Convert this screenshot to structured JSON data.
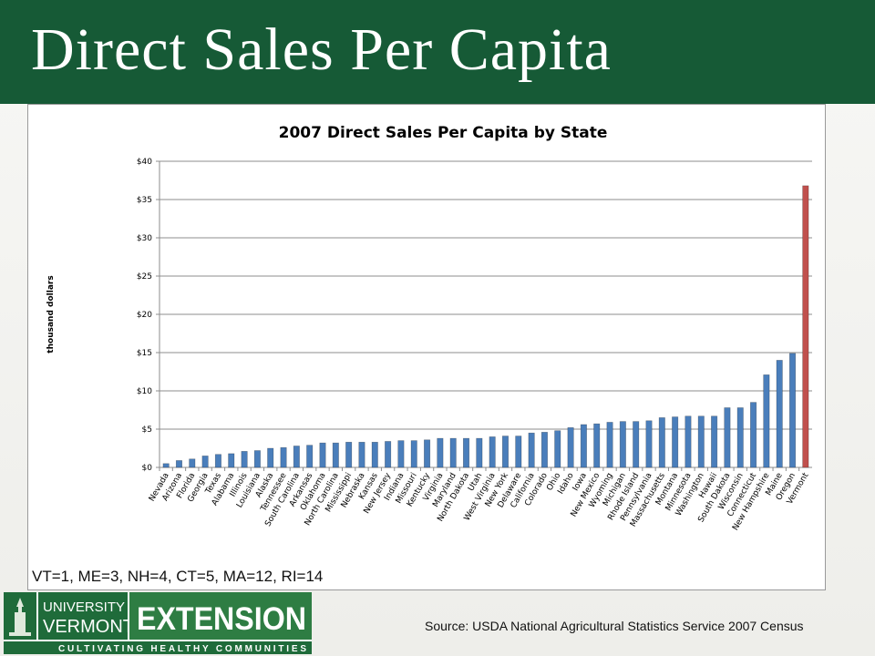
{
  "header": {
    "title": "Direct Sales Per Capita"
  },
  "note": "VT=1, ME=3, NH=4, CT=5, MA=12, RI=14",
  "source": "Source:  USDA National Agricultural Statistics Service 2007 Census",
  "logo": {
    "line1": "UNIVERSITY OF",
    "line2": "VERMONT",
    "word": "EXTENSION",
    "tagline": "CULTIVATING HEALTHY COMMUNITIES",
    "green": "#1f6b3a"
  },
  "chart_data": {
    "type": "bar",
    "title": "2007 Direct Sales Per Capita by State",
    "ylabel": "thousand dollars",
    "xlabel": "",
    "ylim": [
      0,
      40
    ],
    "yticks": [
      "$0",
      "$5",
      "$10",
      "$15",
      "$20",
      "$25",
      "$30",
      "$35",
      "$40"
    ],
    "grid": true,
    "colors": {
      "bar": "#4a7ebb",
      "highlight": "#c0504d"
    },
    "highlight": "Vermont",
    "categories": [
      "Nevada",
      "Arizona",
      "Florida",
      "Georgia",
      "Texas",
      "Alabama",
      "Illinois",
      "Louisiana",
      "Alaska",
      "Tennessee",
      "South Carolina",
      "Arkansas",
      "Oklahoma",
      "North Carolina",
      "Mississippi",
      "Nebraska",
      "Kansas",
      "New Jersey",
      "Indiana",
      "Missouri",
      "Kentucky",
      "Virginia",
      "Maryland",
      "North Dakota",
      "Utah",
      "West Virginia",
      "New York",
      "Delaware",
      "California",
      "Colorado",
      "Ohio",
      "Idaho",
      "Iowa",
      "New Mexico",
      "Wyoming",
      "Michigan",
      "Rhode Island",
      "Pennsylvania",
      "Massachusetts",
      "Montana",
      "Minnesota",
      "Washington",
      "Hawaii",
      "South Dakota",
      "Wisconsin",
      "Connecticut",
      "New Hampshire",
      "Maine",
      "Oregon",
      "Vermont"
    ],
    "values": [
      0.5,
      0.9,
      1.1,
      1.5,
      1.7,
      1.8,
      2.1,
      2.2,
      2.5,
      2.6,
      2.8,
      2.9,
      3.2,
      3.2,
      3.3,
      3.3,
      3.3,
      3.4,
      3.5,
      3.5,
      3.6,
      3.8,
      3.8,
      3.8,
      3.8,
      4.0,
      4.1,
      4.1,
      4.5,
      4.6,
      4.8,
      5.2,
      5.6,
      5.7,
      5.9,
      6.0,
      6.0,
      6.1,
      6.5,
      6.6,
      6.7,
      6.7,
      6.7,
      7.8,
      7.8,
      8.5,
      12.1,
      14.0,
      14.9,
      36.8
    ]
  }
}
